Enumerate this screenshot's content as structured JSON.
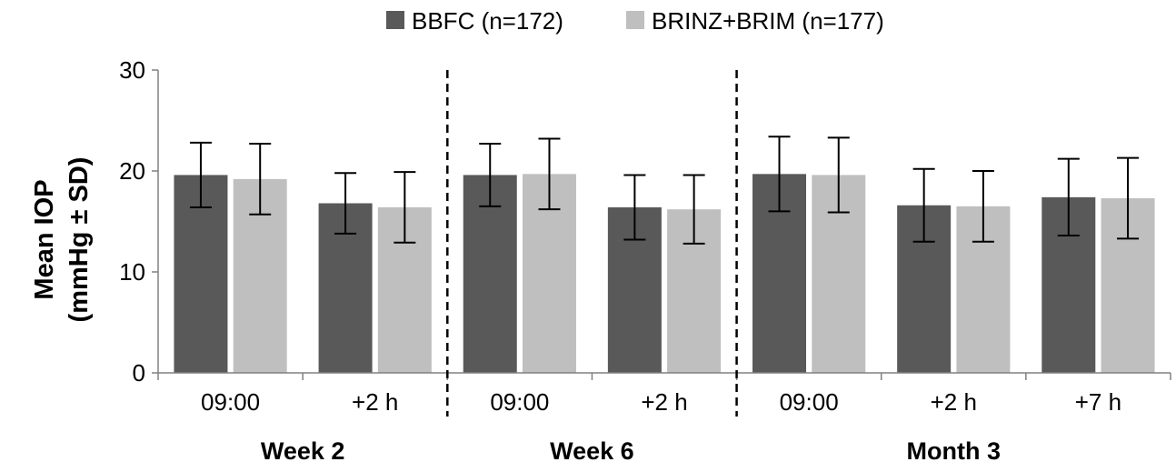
{
  "chart_data": {
    "type": "bar",
    "ylabel_lines": [
      "Mean IOP",
      "(mmHg ± SD)"
    ],
    "xlabel": "",
    "ylim": [
      0,
      30
    ],
    "yticks": [
      0,
      10,
      20,
      30
    ],
    "grid": false,
    "legend_position": "top-center",
    "categories": [
      "09:00",
      "+2 h",
      "09:00",
      "+2 h",
      "09:00",
      "+2 h",
      "+7 h"
    ],
    "groups": [
      {
        "label": "Week 2",
        "categories": [
          "09:00",
          "+2 h"
        ]
      },
      {
        "label": "Week 6",
        "categories": [
          "09:00",
          "+2 h"
        ]
      },
      {
        "label": "Month 3",
        "categories": [
          "09:00",
          "+2 h",
          "+7 h"
        ]
      }
    ],
    "group_separator": "dashed",
    "series": [
      {
        "name": "BBFC (n=172)",
        "color": "#595959",
        "values": [
          19.6,
          16.8,
          19.6,
          16.4,
          19.7,
          16.6,
          17.4
        ],
        "sd": [
          3.2,
          3.0,
          3.1,
          3.2,
          3.7,
          3.6,
          3.8
        ]
      },
      {
        "name": "BRINZ+BRIM (n=177)",
        "color": "#bfbfbf",
        "values": [
          19.2,
          16.4,
          19.7,
          16.2,
          19.6,
          16.5,
          17.3
        ],
        "sd": [
          3.5,
          3.5,
          3.5,
          3.4,
          3.7,
          3.5,
          4.0
        ]
      }
    ]
  }
}
